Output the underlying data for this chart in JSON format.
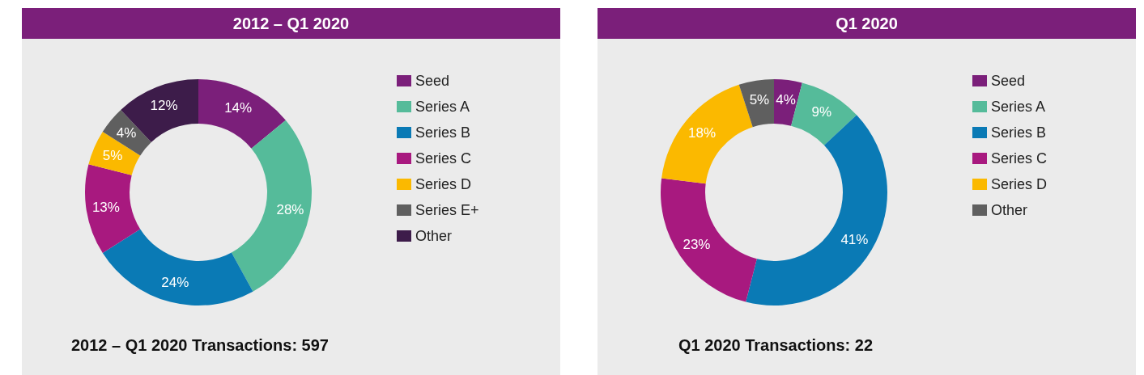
{
  "chart_data": [
    {
      "type": "donut",
      "title": "2012 – Q1 2020",
      "categories": [
        "Seed",
        "Series A",
        "Series B",
        "Series C",
        "Series D",
        "Series E+",
        "Other"
      ],
      "values": [
        14,
        28,
        24,
        13,
        5,
        4,
        12
      ],
      "value_labels": [
        "14%",
        "28%",
        "24%",
        "13%",
        "5%",
        "4%",
        "12%"
      ],
      "colors": [
        "#7b1f7a",
        "#55bb9a",
        "#0a7ab5",
        "#a8197f",
        "#fbb900",
        "#5f5f5f",
        "#3d1c4a"
      ],
      "legend": "right",
      "annotations": [
        "2012 – Q1 2020 Transactions: 597"
      ]
    },
    {
      "type": "donut",
      "title": "Q1 2020",
      "categories": [
        "Seed",
        "Series A",
        "Series B",
        "Series C",
        "Series D",
        "Other"
      ],
      "values": [
        4,
        9,
        41,
        23,
        18,
        5
      ],
      "value_labels": [
        "4%",
        "9%",
        "41%",
        "23%",
        "18%",
        "5%"
      ],
      "colors": [
        "#7b1f7a",
        "#55bb9a",
        "#0a7ab5",
        "#a8197f",
        "#fbb900",
        "#5f5f5f"
      ],
      "legend": "right",
      "annotations": [
        "Q1 2020 Transactions: 22"
      ]
    }
  ]
}
